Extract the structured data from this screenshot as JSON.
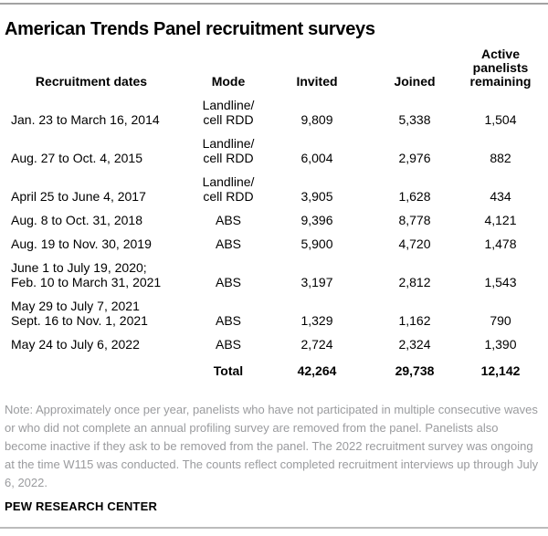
{
  "title": "American Trends Panel recruitment surveys",
  "table": {
    "col_dates": "Recruitment dates",
    "col_mode": "Mode",
    "col_invited": "Invited",
    "col_joined": "Joined",
    "col_active": "Active\npanelists\nremaining",
    "rows": [
      {
        "dates": "Jan. 23 to March 16, 2014",
        "mode": "Landline/\ncell RDD",
        "invited": "9,809",
        "joined": "5,338",
        "remaining": "1,504"
      },
      {
        "dates": "Aug. 27 to Oct. 4, 2015",
        "mode": "Landline/\ncell RDD",
        "invited": "6,004",
        "joined": "2,976",
        "remaining": "882"
      },
      {
        "dates": "April 25 to June 4, 2017",
        "mode": "Landline/\ncell RDD",
        "invited": "3,905",
        "joined": "1,628",
        "remaining": "434"
      },
      {
        "dates": "Aug. 8 to Oct. 31, 2018",
        "mode": "ABS",
        "invited": "9,396",
        "joined": "8,778",
        "remaining": "4,121"
      },
      {
        "dates": "Aug. 19 to Nov. 30, 2019",
        "mode": "ABS",
        "invited": "5,900",
        "joined": "4,720",
        "remaining": "1,478"
      },
      {
        "dates": "June 1 to July 19, 2020;\nFeb. 10 to March 31, 2021",
        "mode": "ABS",
        "invited": "3,197",
        "joined": "2,812",
        "remaining": "1,543"
      },
      {
        "dates": "May 29 to July 7, 2021\nSept. 16 to Nov. 1, 2021",
        "mode": "ABS",
        "invited": "1,329",
        "joined": "1,162",
        "remaining": "790"
      },
      {
        "dates": "May 24 to July 6, 2022",
        "mode": "ABS",
        "invited": "2,724",
        "joined": "2,324",
        "remaining": "1,390"
      }
    ],
    "total": {
      "label": "Total",
      "invited": "42,264",
      "joined": "29,738",
      "remaining": "12,142"
    }
  },
  "note": "Note: Approximately once per year, panelists who have not participated in multiple consecutive waves or who did not complete an annual profiling survey are removed from the panel. Panelists also become inactive if they ask to be removed from the panel. The 2022 recruitment survey was ongoing at the time W115 was conducted. The counts reflect completed recruitment interviews up through July 6, 2022.",
  "source": "PEW RESEARCH CENTER",
  "colors": {
    "note_gray": "#9a9b9e",
    "rule_top": "#a3a3a3",
    "rule_bottom": "#bcbcbc",
    "text": "#000000",
    "background": "#ffffff"
  },
  "chart_data": {
    "type": "table",
    "title": "American Trends Panel recruitment surveys",
    "columns": [
      "Recruitment dates",
      "Mode",
      "Invited",
      "Joined",
      "Active panelists remaining"
    ],
    "rows": [
      [
        "Jan. 23 to March 16, 2014",
        "Landline/cell RDD",
        9809,
        5338,
        1504
      ],
      [
        "Aug. 27 to Oct. 4, 2015",
        "Landline/cell RDD",
        6004,
        2976,
        882
      ],
      [
        "April 25 to June 4, 2017",
        "Landline/cell RDD",
        3905,
        1628,
        434
      ],
      [
        "Aug. 8 to Oct. 31, 2018",
        "ABS",
        9396,
        8778,
        4121
      ],
      [
        "Aug. 19 to Nov. 30, 2019",
        "ABS",
        5900,
        4720,
        1478
      ],
      [
        "June 1 to July 19, 2020; Feb. 10 to March 31, 2021",
        "ABS",
        3197,
        2812,
        1543
      ],
      [
        "May 29 to July 7, 2021 / Sept. 16 to Nov. 1, 2021",
        "ABS",
        1329,
        1162,
        790
      ],
      [
        "May 24 to July 6, 2022",
        "ABS",
        2724,
        2324,
        1390
      ]
    ],
    "total_row": [
      "",
      "Total",
      42264,
      29738,
      12142
    ],
    "note": "Note: Approximately once per year, panelists who have not participated in multiple consecutive waves or who did not complete an annual profiling survey are removed from the panel. Panelists also become inactive if they ask to be removed from the panel. The 2022 recruitment survey was ongoing at the time W115 was conducted. The counts reflect completed recruitment interviews up through July 6, 2022.",
    "source": "PEW RESEARCH CENTER"
  }
}
